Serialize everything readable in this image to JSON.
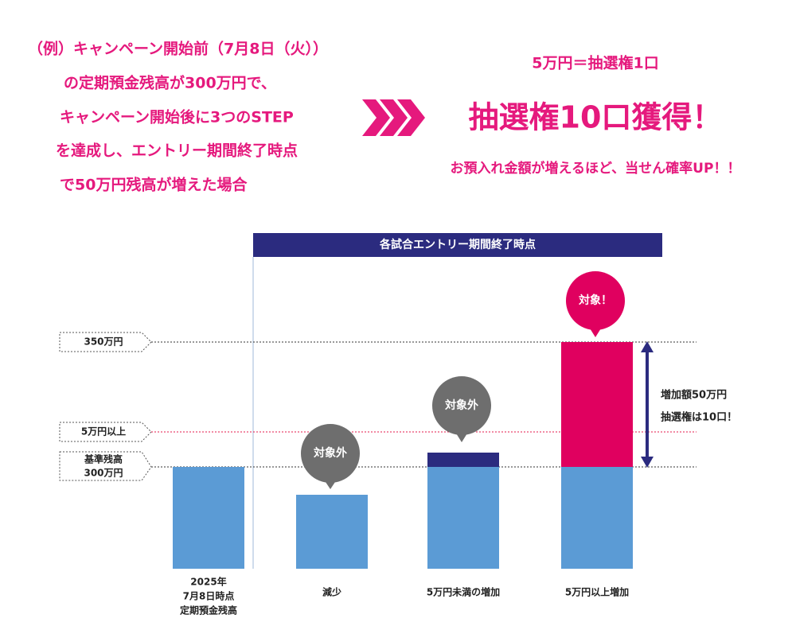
{
  "example": {
    "lines": [
      "（例）キャンペーン開始前（7月8日（火））",
      "の定期預金残高が300万円で、",
      "キャンペーン開始後に3つのSTEP",
      "を達成し、エントリー期間終了時点",
      "で50万円残高が増えた場合"
    ]
  },
  "result": {
    "rate": "5万円＝抽選権1口",
    "headline": "抽選権10口獲得！",
    "note": "お預入れ金額が増えるほど、当せん確率UP！！"
  },
  "diagram": {
    "header": "各試合エントリー期間終了時点",
    "levels": [
      "350万円",
      "5万円以上",
      "基準残高",
      "300万円"
    ],
    "bubbles": [
      "対象外",
      "対象外",
      "対象！"
    ],
    "increase": [
      "増加額50万円",
      "抽選権は10口！"
    ],
    "baseline_label": [
      "2025年",
      "7月8日時点",
      "定期預金残高"
    ],
    "categories": [
      "減少",
      "5万円未満の増加",
      "5万円以上増加"
    ]
  }
}
